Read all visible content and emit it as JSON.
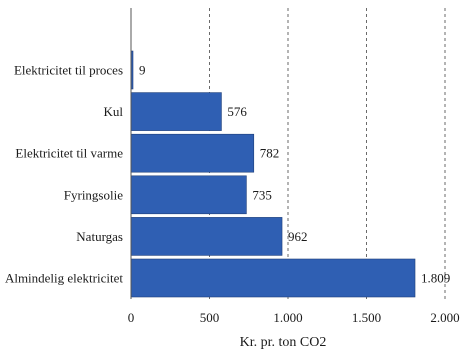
{
  "chart_data": {
    "type": "bar",
    "orientation": "horizontal",
    "categories": [
      "Elektricitet til proces",
      "Kul",
      "Elektricitet til varme",
      "Fyringsolie",
      "Naturgas",
      "Almindelig elektricitet"
    ],
    "values": [
      9,
      576,
      782,
      735,
      962,
      1809
    ],
    "value_labels": [
      "9",
      "576",
      "782",
      "735",
      "962",
      "1.809"
    ],
    "xlabel": "Kr. pr. ton CO2",
    "ylabel": "",
    "xlim": [
      0,
      2000
    ],
    "xticks": [
      0,
      500,
      1000,
      1500,
      2000
    ],
    "xtick_labels": [
      "0",
      "500",
      "1.000",
      "1.500",
      "2.000"
    ],
    "grid": "vertical dashed",
    "bar_color": "#2f5fb3"
  }
}
